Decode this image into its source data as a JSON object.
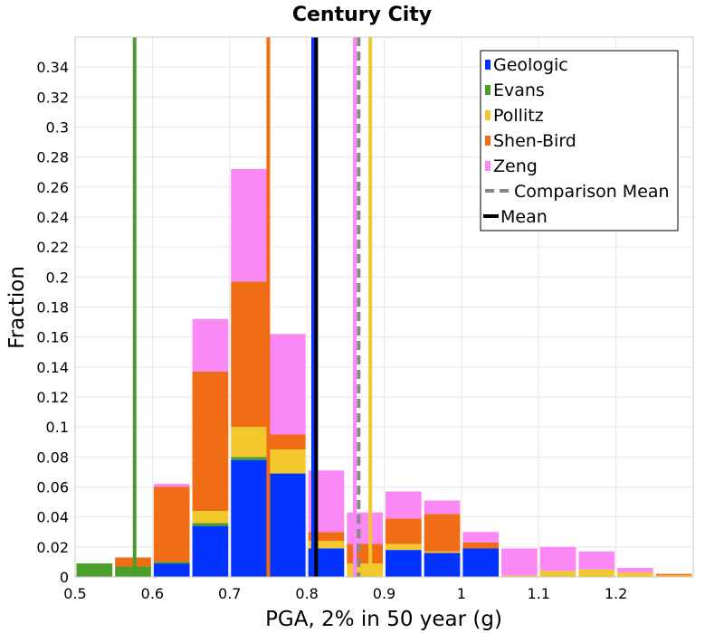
{
  "chart_data": {
    "type": "bar",
    "stacked": true,
    "title": "Century City",
    "xlabel": "PGA, 2% in 50 year (g)",
    "ylabel": "Fraction",
    "xlim": [
      0.5,
      1.3
    ],
    "ylim": [
      0,
      0.36
    ],
    "xticks": [
      "0.5",
      "0.6",
      "0.7",
      "0.8",
      "0.9",
      "1",
      "1.1",
      "1.2"
    ],
    "yticks": [
      "0",
      "0.02",
      "0.04",
      "0.06",
      "0.08",
      "0.1",
      "0.12",
      "0.14",
      "0.16",
      "0.18",
      "0.2",
      "0.22",
      "0.24",
      "0.26",
      "0.28",
      "0.3",
      "0.32",
      "0.34"
    ],
    "grid": true,
    "legend_position": "top-right",
    "bin_width": 0.05,
    "x": [
      0.525,
      0.575,
      0.625,
      0.675,
      0.725,
      0.775,
      0.825,
      0.875,
      0.925,
      0.975,
      1.025,
      1.075,
      1.125,
      1.175,
      1.225,
      1.275
    ],
    "series": [
      {
        "name": "Geologic",
        "color": "#0433ff",
        "values": [
          0,
          0,
          0.009,
          0.034,
          0.078,
          0.069,
          0.019,
          0,
          0.018,
          0.016,
          0.019,
          0,
          0,
          0,
          0,
          0
        ]
      },
      {
        "name": "Evans",
        "color": "#4a9e29",
        "values": [
          0.009,
          0.007,
          0.001,
          0.002,
          0.002,
          0,
          0,
          0,
          0,
          0,
          0,
          0,
          0,
          0,
          0,
          0
        ]
      },
      {
        "name": "Pollitz",
        "color": "#f3c82d",
        "values": [
          0,
          0,
          0,
          0.008,
          0.02,
          0.016,
          0.005,
          0.009,
          0.004,
          0.001,
          0,
          0.001,
          0.004,
          0.005,
          0.003,
          0.001
        ]
      },
      {
        "name": "Shen-Bird",
        "color": "#f06c15",
        "values": [
          0,
          0.006,
          0.05,
          0.093,
          0.097,
          0.01,
          0.006,
          0.013,
          0.017,
          0.025,
          0.004,
          0,
          0,
          0,
          0,
          0.001
        ]
      },
      {
        "name": "Zeng",
        "color": "#fa89f5",
        "values": [
          0,
          0,
          0.002,
          0.035,
          0.075,
          0.067,
          0.041,
          0.021,
          0.018,
          0.009,
          0.007,
          0.018,
          0.016,
          0.012,
          0.003,
          0
        ]
      }
    ],
    "vertical_lines": [
      {
        "series": "Evans",
        "x": 0.577,
        "color": "#4a9e29",
        "style": "solid"
      },
      {
        "series": "Shen-Bird",
        "x": 0.75,
        "color": "#f06c15",
        "style": "solid"
      },
      {
        "series": "Geologic",
        "x": 0.808,
        "color": "#0433ff",
        "style": "solid"
      },
      {
        "series": "Mean",
        "x": 0.812,
        "color": "#000000",
        "style": "solid"
      },
      {
        "series": "Zeng",
        "x": 0.862,
        "color": "#fa89f5",
        "style": "solid"
      },
      {
        "series": "Comparison Mean",
        "x": 0.867,
        "color": "#888888",
        "style": "dashed"
      },
      {
        "series": "Pollitz",
        "x": 0.882,
        "color": "#f3c82d",
        "style": "solid"
      }
    ],
    "legend": [
      {
        "label": "Geologic",
        "color": "#0433ff",
        "kind": "box"
      },
      {
        "label": "Evans",
        "color": "#4a9e29",
        "kind": "box"
      },
      {
        "label": "Pollitz",
        "color": "#f3c82d",
        "kind": "box"
      },
      {
        "label": "Shen-Bird",
        "color": "#f06c15",
        "kind": "box"
      },
      {
        "label": "Zeng",
        "color": "#fa89f5",
        "kind": "box"
      },
      {
        "label": "Comparison Mean",
        "color": "#888888",
        "kind": "dashed"
      },
      {
        "label": "Mean",
        "color": "#000000",
        "kind": "solid"
      }
    ]
  }
}
